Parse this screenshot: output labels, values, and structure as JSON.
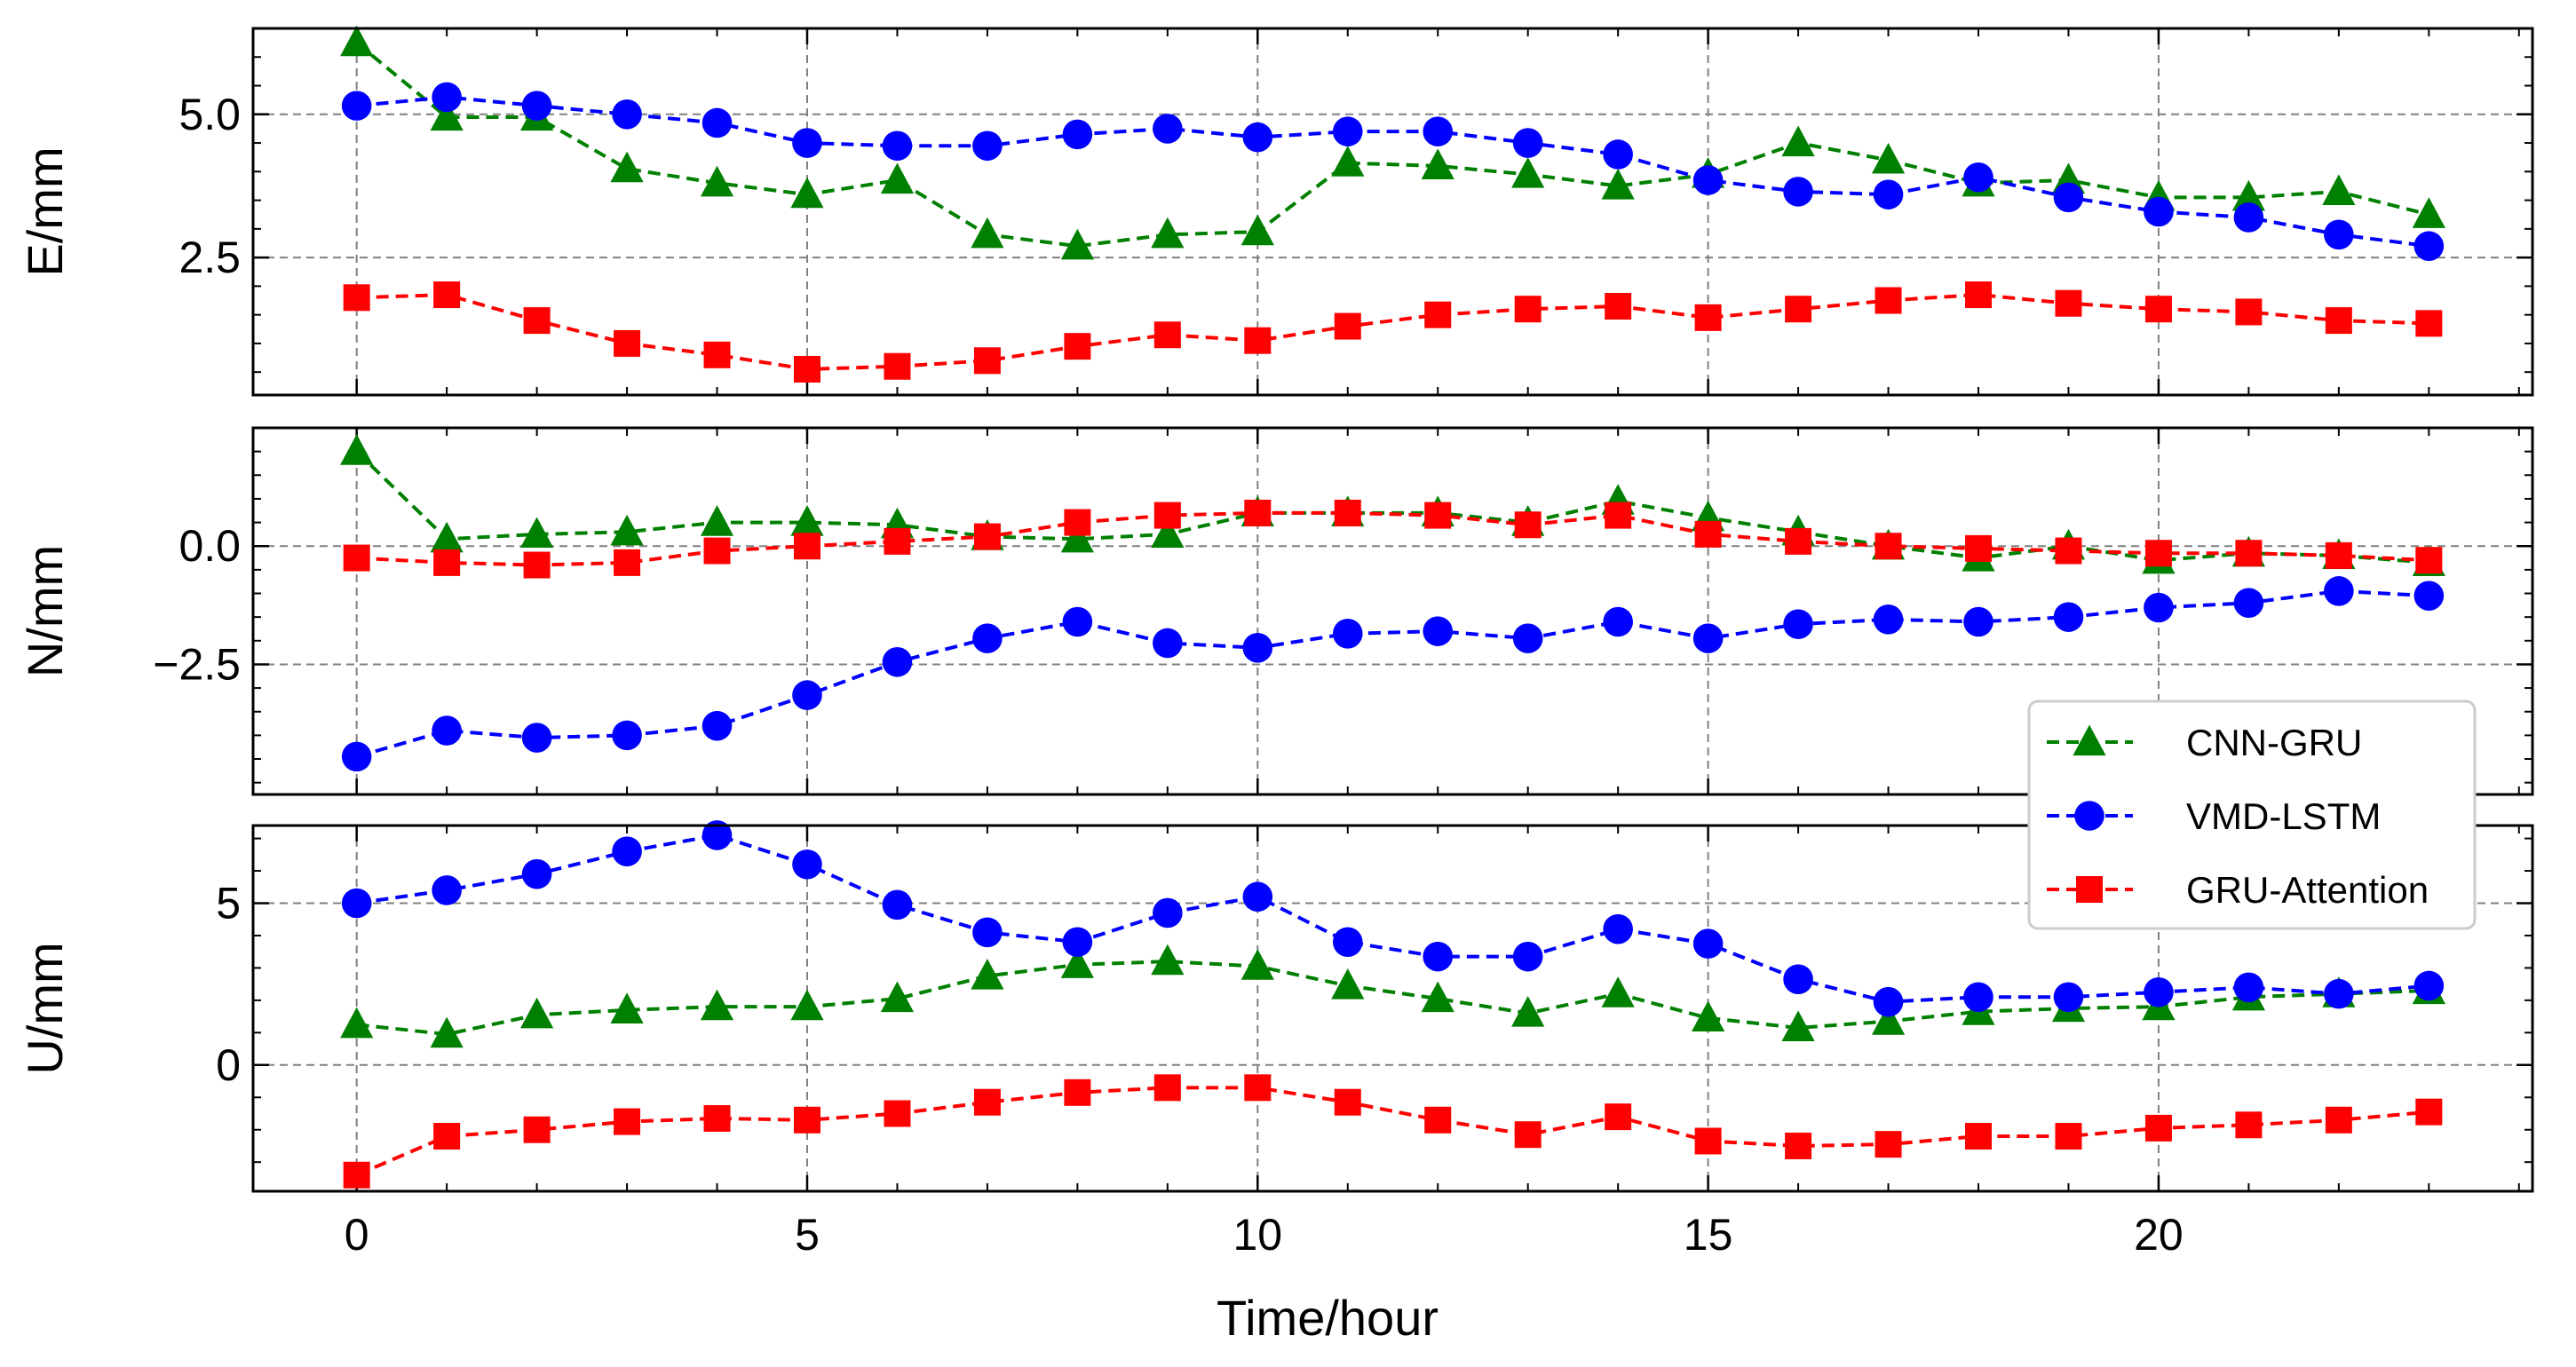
{
  "chart_data": {
    "type": "line",
    "xlabel": "Time/hour",
    "x": [
      0,
      1,
      2,
      3,
      4,
      5,
      6,
      7,
      8,
      9,
      10,
      11,
      12,
      13,
      14,
      15,
      16,
      17,
      18,
      19,
      20,
      21,
      22,
      23
    ],
    "xlim": [
      -1.15,
      24.15
    ],
    "xticks": [
      0,
      5,
      10,
      15,
      20
    ],
    "xtick_labels": [
      "0",
      "5",
      "10",
      "15",
      "20"
    ],
    "grid": true,
    "legend_position": "right, overlapping middle and bottom panels",
    "legend": [
      {
        "name": "CNN-GRU",
        "color": "#008000",
        "marker": "triangle"
      },
      {
        "name": "VMD-LSTM",
        "color": "#0000ff",
        "marker": "circle"
      },
      {
        "name": "GRU-Attention",
        "color": "#ff0000",
        "marker": "square"
      }
    ],
    "panels": [
      {
        "ylabel": "E/mm",
        "ylim": [
          0.1,
          6.5
        ],
        "yticks": [
          2.5,
          5.0
        ],
        "ytick_labels": [
          "2.5",
          "5.0"
        ],
        "series": [
          {
            "name": "CNN-GRU",
            "values": [
              6.25,
              4.95,
              4.95,
              4.05,
              3.8,
              3.6,
              3.85,
              2.9,
              2.7,
              2.9,
              2.95,
              4.15,
              4.1,
              3.95,
              3.75,
              3.95,
              4.5,
              4.2,
              3.8,
              3.85,
              3.55,
              3.55,
              3.65,
              3.25
            ]
          },
          {
            "name": "VMD-LSTM",
            "values": [
              5.15,
              5.3,
              5.15,
              5.0,
              4.85,
              4.5,
              4.45,
              4.45,
              4.65,
              4.75,
              4.6,
              4.7,
              4.7,
              4.5,
              4.3,
              3.85,
              3.65,
              3.6,
              3.9,
              3.55,
              3.3,
              3.2,
              2.9,
              2.7
            ]
          },
          {
            "name": "GRU-Attention",
            "values": [
              1.8,
              1.85,
              1.4,
              1.0,
              0.8,
              0.55,
              0.6,
              0.7,
              0.95,
              1.15,
              1.05,
              1.3,
              1.5,
              1.6,
              1.65,
              1.45,
              1.6,
              1.75,
              1.85,
              1.7,
              1.6,
              1.55,
              1.4,
              1.35
            ]
          }
        ]
      },
      {
        "ylabel": "N/mm",
        "ylim": [
          -5.25,
          2.5
        ],
        "yticks": [
          -2.5,
          0.0
        ],
        "ytick_labels": [
          "−2.5",
          "0.0"
        ],
        "series": [
          {
            "name": "CNN-GRU",
            "values": [
              2.0,
              0.15,
              0.25,
              0.3,
              0.5,
              0.5,
              0.45,
              0.2,
              0.15,
              0.25,
              0.7,
              0.7,
              0.7,
              0.5,
              0.95,
              0.6,
              0.3,
              0.0,
              -0.25,
              0.0,
              -0.3,
              -0.15,
              -0.2,
              -0.35
            ]
          },
          {
            "name": "VMD-LSTM",
            "values": [
              -4.45,
              -3.9,
              -4.05,
              -4.0,
              -3.8,
              -3.15,
              -2.45,
              -1.95,
              -1.6,
              -2.05,
              -2.15,
              -1.85,
              -1.8,
              -1.95,
              -1.6,
              -1.95,
              -1.65,
              -1.55,
              -1.6,
              -1.5,
              -1.3,
              -1.2,
              -0.95,
              -1.05
            ]
          },
          {
            "name": "GRU-Attention",
            "values": [
              -0.25,
              -0.35,
              -0.4,
              -0.35,
              -0.1,
              0.0,
              0.1,
              0.2,
              0.5,
              0.65,
              0.7,
              0.7,
              0.65,
              0.45,
              0.65,
              0.25,
              0.1,
              0.0,
              -0.05,
              -0.1,
              -0.15,
              -0.15,
              -0.2,
              -0.3
            ]
          }
        ]
      },
      {
        "ylabel": "U/mm",
        "ylim": [
          -3.9,
          7.4
        ],
        "yticks": [
          0,
          5
        ],
        "ytick_labels": [
          "0",
          "5"
        ],
        "series": [
          {
            "name": "CNN-GRU",
            "values": [
              1.25,
              0.95,
              1.55,
              1.7,
              1.8,
              1.8,
              2.05,
              2.75,
              3.1,
              3.2,
              3.05,
              2.45,
              2.05,
              1.6,
              2.2,
              1.45,
              1.15,
              1.35,
              1.65,
              1.75,
              1.8,
              2.1,
              2.2,
              2.3
            ]
          },
          {
            "name": "VMD-LSTM",
            "values": [
              5.0,
              5.4,
              5.9,
              6.6,
              7.1,
              6.2,
              4.95,
              4.1,
              3.8,
              4.7,
              5.2,
              3.8,
              3.35,
              3.35,
              4.2,
              3.75,
              2.65,
              1.95,
              2.1,
              2.1,
              2.25,
              2.4,
              2.2,
              2.45
            ]
          },
          {
            "name": "GRU-Attention",
            "values": [
              -3.4,
              -2.2,
              -2.0,
              -1.75,
              -1.65,
              -1.7,
              -1.5,
              -1.15,
              -0.85,
              -0.7,
              -0.7,
              -1.15,
              -1.7,
              -2.15,
              -1.6,
              -2.35,
              -2.5,
              -2.45,
              -2.2,
              -2.2,
              -1.95,
              -1.85,
              -1.7,
              -1.45
            ]
          }
        ]
      }
    ]
  }
}
